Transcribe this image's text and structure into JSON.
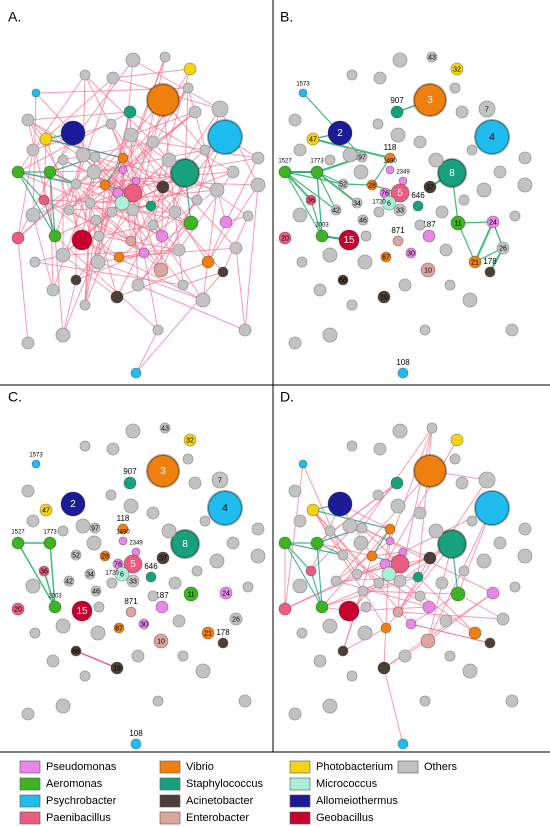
{
  "panels": [
    {
      "label": "A."
    },
    {
      "label": "B."
    },
    {
      "label": "C."
    },
    {
      "label": "D."
    }
  ],
  "node_labels": [
    "43",
    "32",
    "3",
    "7",
    "4",
    "1573",
    "907",
    "2",
    "47",
    "1527",
    "1773",
    "97",
    "118",
    "1490",
    "37",
    "8",
    "52",
    "28",
    "2349",
    "5",
    "76",
    "6",
    "646",
    "36",
    "34",
    "1720",
    "33",
    "42",
    "46",
    "11",
    "24",
    "20",
    "2003",
    "15",
    "871",
    "187",
    "30",
    "87",
    "21",
    "26",
    "178",
    "10",
    "68",
    "19",
    "108"
  ],
  "legend": [
    {
      "name": "Pseudomonas",
      "color": "#e987e9"
    },
    {
      "name": "Aeromonas",
      "color": "#3db522"
    },
    {
      "name": "Psychrobacter",
      "color": "#1fbdef"
    },
    {
      "name": "Paenibacillus",
      "color": "#ec5b80"
    },
    {
      "name": "Vibrio",
      "color": "#f0800e"
    },
    {
      "name": "Staphylococcus",
      "color": "#17a27d"
    },
    {
      "name": "Acinetobacter",
      "color": "#4c3f37"
    },
    {
      "name": "Enterobacter",
      "color": "#dca59d"
    },
    {
      "name": "Photobacterium",
      "color": "#f6d214"
    },
    {
      "name": "Micrococcus",
      "color": "#aaf0d9"
    },
    {
      "name": "Allomeiothermus",
      "color": "#1b1b98"
    },
    {
      "name": "Geobacillus",
      "color": "#c8002e"
    },
    {
      "name": "Others",
      "color": "#c2c2c2"
    }
  ]
}
